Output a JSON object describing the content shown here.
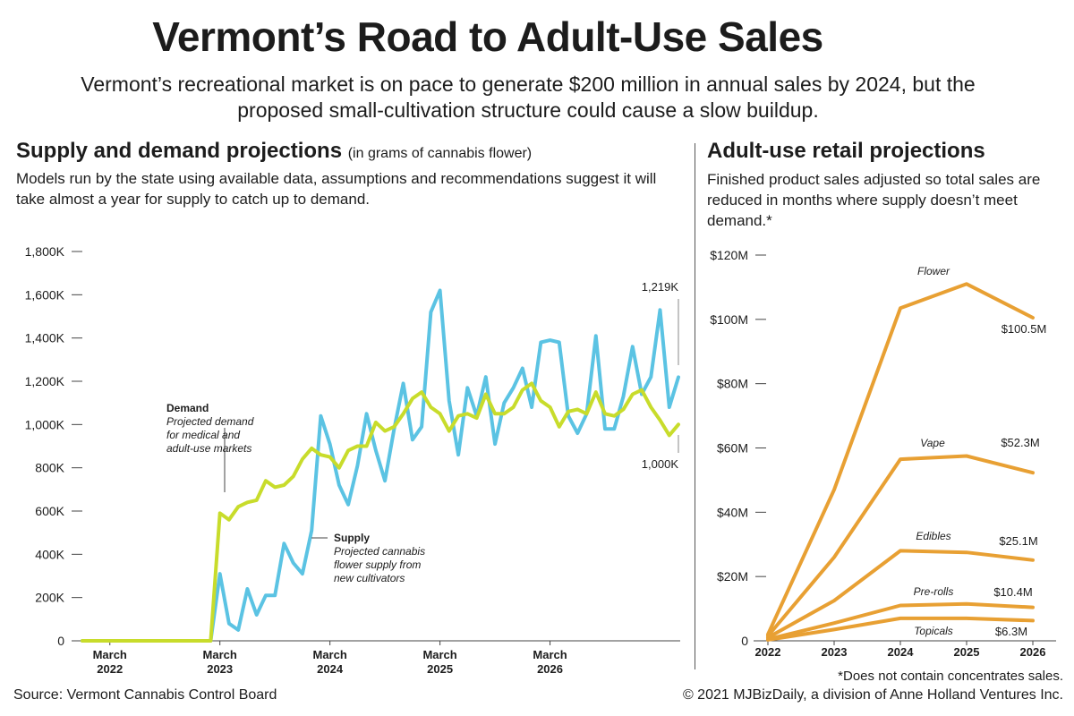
{
  "header": {
    "title": "Vermont’s Road to Adult-Use Sales",
    "subtitle": "Vermont’s recreational market is on pace to generate $200 million in annual sales by 2024, but the proposed small-cultivation structure could cause a slow buildup."
  },
  "left_panel": {
    "heading": "Supply and demand projections",
    "heading_note": "(in grams of cannabis flower)",
    "description": "Models run by the state using available data, assumptions and recommendations suggest it will take almost a year for supply to catch up to demand."
  },
  "right_panel": {
    "heading": "Adult-use retail projections",
    "description": "Finished product sales adjusted so total sales are reduced in months where supply doesn’t meet demand.*"
  },
  "footer": {
    "source": "Source: Vermont Cannabis Control Board",
    "footnote": "*Does not contain concentrates sales.",
    "copyright": "© 2021 MJBizDaily, a division of Anne Holland Ventures Inc."
  },
  "colors": {
    "demand": "#c8dc2b",
    "supply": "#5bc3e3",
    "retail": "#e8a033",
    "text": "#1c1c1c"
  },
  "chart_data": [
    {
      "type": "line",
      "title": "Supply and demand projections",
      "x_ticks": [
        "March 2022",
        "March 2023",
        "March 2024",
        "March 2025",
        "March 2026"
      ],
      "y_ticks": [
        "0",
        "200K",
        "400K",
        "600K",
        "800K",
        "1,000K",
        "1,200K",
        "1,400K",
        "1,600K",
        "1,800K"
      ],
      "ylim": [
        0,
        1800
      ],
      "grid": false,
      "series": [
        {
          "name": "Demand",
          "label_title": "Demand",
          "label_desc": [
            "Projected demand",
            "for medical and",
            "adult-use markets"
          ],
          "values": [
            0,
            0,
            0,
            0,
            0,
            0,
            0,
            0,
            0,
            0,
            0,
            0,
            0,
            0,
            0,
            590,
            560,
            620,
            640,
            650,
            740,
            710,
            720,
            760,
            840,
            890,
            860,
            850,
            800,
            880,
            900,
            900,
            1010,
            970,
            990,
            1050,
            1120,
            1150,
            1080,
            1050,
            970,
            1040,
            1050,
            1030,
            1140,
            1050,
            1050,
            1080,
            1160,
            1190,
            1110,
            1080,
            990,
            1060,
            1070,
            1050,
            1150,
            1050,
            1040,
            1070,
            1140,
            1160,
            1080,
            1020,
            950,
            1000
          ]
        },
        {
          "name": "Supply",
          "label_title": "Supply",
          "label_desc": [
            "Projected cannabis",
            "flower supply from",
            "new cultivators"
          ],
          "values": [
            0,
            0,
            0,
            0,
            0,
            0,
            0,
            0,
            0,
            0,
            0,
            0,
            0,
            0,
            0,
            310,
            80,
            50,
            240,
            120,
            210,
            210,
            450,
            360,
            310,
            510,
            1040,
            910,
            720,
            630,
            810,
            1050,
            880,
            740,
            980,
            1190,
            930,
            990,
            1520,
            1620,
            1110,
            860,
            1170,
            1040,
            1220,
            910,
            1100,
            1170,
            1260,
            1080,
            1380,
            1390,
            1380,
            1040,
            960,
            1050,
            1410,
            980,
            980,
            1130,
            1360,
            1140,
            1220,
            1530,
            1080,
            1219
          ]
        }
      ],
      "annotations": [
        "1,219K",
        "1,000K"
      ]
    },
    {
      "type": "line",
      "title": "Adult-use retail projections",
      "categories": [
        "2022",
        "2023",
        "2024",
        "2025",
        "2026"
      ],
      "y_ticks": [
        "0",
        "$20M",
        "$40M",
        "$60M",
        "$80M",
        "$100M",
        "$120M"
      ],
      "ylim": [
        0,
        120
      ],
      "grid": false,
      "series": [
        {
          "name": "Flower",
          "values": [
            2,
            47,
            103.5,
            111,
            100.5
          ],
          "end_label": "$100.5M"
        },
        {
          "name": "Vape",
          "values": [
            1.5,
            26,
            56.5,
            57.5,
            52.3
          ],
          "end_label": "$52.3M"
        },
        {
          "name": "Edibles",
          "values": [
            1,
            12.5,
            28,
            27.5,
            25.1
          ],
          "end_label": "$25.1M"
        },
        {
          "name": "Pre-rolls",
          "values": [
            0.5,
            5.5,
            11,
            11.5,
            10.4
          ],
          "end_label": "$10.4M"
        },
        {
          "name": "Topicals",
          "values": [
            0.3,
            3.5,
            7,
            7,
            6.3
          ],
          "end_label": "$6.3M"
        }
      ]
    }
  ]
}
